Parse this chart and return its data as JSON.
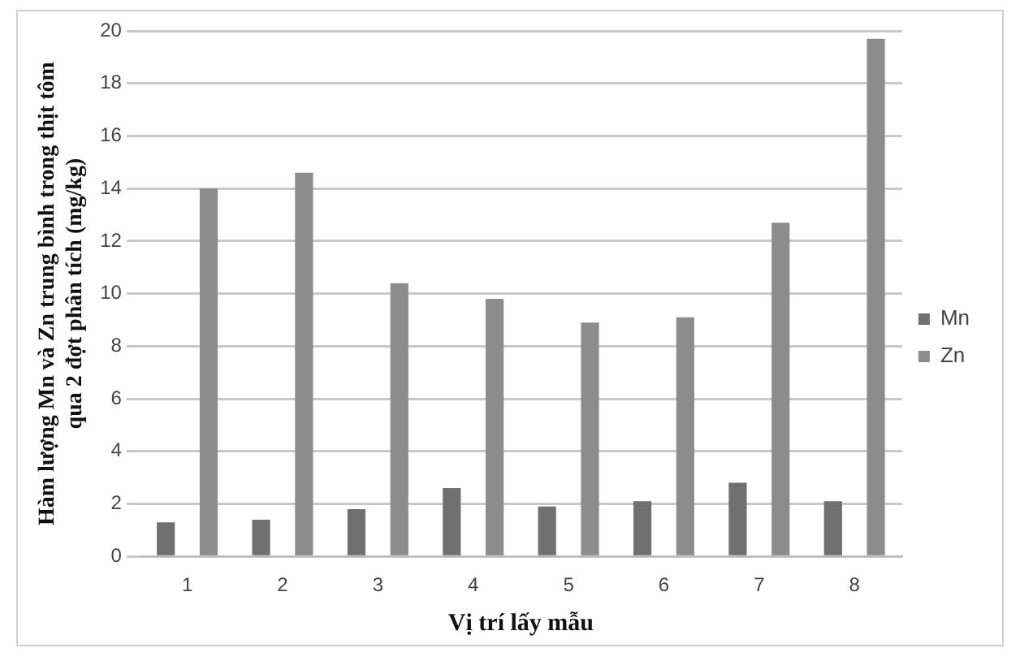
{
  "chart_data": {
    "type": "bar",
    "xlabel": "Vị trí lấy mẫu",
    "ylabel": "Hàm lượng Mn và Zn trung bình trong thịt tôm qua 2 đợt phân tích (mg/kg)",
    "categories": [
      "1",
      "2",
      "3",
      "4",
      "5",
      "6",
      "7",
      "8"
    ],
    "series": [
      {
        "name": "Mn",
        "color": "#707070",
        "values": [
          1.3,
          1.4,
          1.8,
          2.6,
          1.9,
          2.1,
          2.8,
          2.1
        ]
      },
      {
        "name": "Zn",
        "color": "#8c8c8c",
        "values": [
          14.0,
          14.6,
          10.4,
          9.8,
          8.9,
          9.1,
          12.7,
          19.7
        ]
      }
    ],
    "ylim": [
      0,
      20
    ],
    "yticks": [
      0,
      2,
      4,
      6,
      8,
      10,
      12,
      14,
      16,
      18,
      20
    ],
    "grid": "y",
    "legend": "right"
  }
}
